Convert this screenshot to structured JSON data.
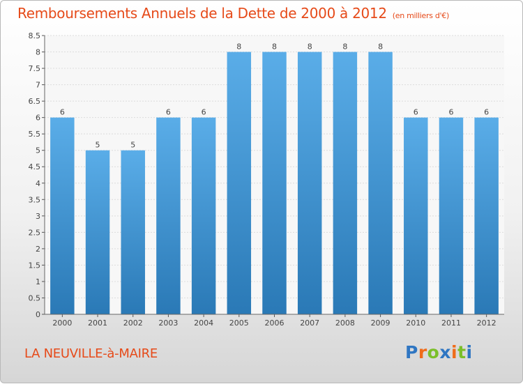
{
  "chart_data": {
    "type": "bar",
    "title": "Remboursements Annuels de la Dette de 2000 à 2012",
    "subtitle": "(en milliers d'€)",
    "categories": [
      "2000",
      "2001",
      "2002",
      "2003",
      "2004",
      "2005",
      "2006",
      "2007",
      "2008",
      "2009",
      "2010",
      "2011",
      "2012"
    ],
    "values": [
      6,
      5,
      5,
      6,
      6,
      8,
      8,
      8,
      8,
      8,
      6,
      6,
      6
    ],
    "ylim": [
      0,
      8.5
    ],
    "yticks": [
      "0",
      "0.5",
      "1",
      "1.5",
      "2",
      "2.5",
      "3",
      "3.5",
      "4",
      "4.5",
      "5",
      "5.5",
      "6",
      "6.5",
      "7",
      "7.5",
      "8",
      "8.5"
    ],
    "grid": true,
    "bar_color": "#3f96d6"
  },
  "commune": "LA NEUVILLE-à-MAIRE",
  "logo": {
    "text": "Proxiti",
    "letters": [
      {
        "ch": "P",
        "color": "#2f76c2"
      },
      {
        "ch": "r",
        "color": "#ef6c1a"
      },
      {
        "ch": "o",
        "color": "#7bbf2a"
      },
      {
        "ch": "x",
        "color": "#2f76c2"
      },
      {
        "ch": "i",
        "color": "#ef6c1a"
      },
      {
        "ch": "t",
        "color": "#7bbf2a"
      },
      {
        "ch": "i",
        "color": "#2f76c2"
      }
    ]
  },
  "colors": {
    "title": "#e64a19",
    "accent": "#e64a19"
  }
}
